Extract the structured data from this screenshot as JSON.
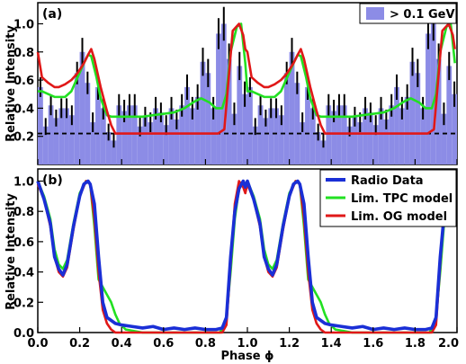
{
  "colors": {
    "histogram": "#8c8ce6",
    "histogram_edge": "#7070d0",
    "radio": "#1a2fd6",
    "tpc": "#22e022",
    "og": "#e01818",
    "error_bar": "#000000",
    "baseline": "#000000"
  },
  "chart_data": [
    {
      "panel": "(a)",
      "type": "bar",
      "xlabel": "",
      "ylabel": "Relative Intensity",
      "xlim": [
        0.0,
        2.0
      ],
      "ylim": [
        0.0,
        1.15
      ],
      "yticks": [
        0.2,
        0.4,
        0.6,
        0.8,
        1.0
      ],
      "ytick_labels": [
        "0.2",
        "0.4",
        "0.6",
        "0.8",
        "1.0"
      ],
      "grid": false,
      "legend_position": "top-right",
      "legend": [
        {
          "label": "> 0.1 GeV",
          "kind": "histogram"
        }
      ],
      "baseline": {
        "y": 0.22,
        "style": "dashed"
      },
      "histogram": {
        "bin_width": 0.025,
        "values_one_cycle": [
          0.55,
          0.27,
          0.42,
          0.33,
          0.4,
          0.4,
          0.35,
          0.65,
          0.8,
          0.58,
          0.3,
          0.55,
          0.4,
          0.23,
          0.17,
          0.42,
          0.38,
          0.42,
          0.42,
          0.27,
          0.34,
          0.3,
          0.4,
          0.37,
          0.28,
          0.4,
          0.32,
          0.42,
          0.55,
          0.4,
          0.48,
          0.73,
          0.65,
          0.4,
          0.93,
          1.0,
          0.75,
          0.36,
          0.7,
          0.5
        ],
        "errors_one_cycle": [
          0.07,
          0.06,
          0.07,
          0.06,
          0.07,
          0.07,
          0.07,
          0.08,
          0.1,
          0.08,
          0.07,
          0.09,
          0.08,
          0.06,
          0.05,
          0.08,
          0.08,
          0.08,
          0.08,
          0.07,
          0.07,
          0.07,
          0.08,
          0.07,
          0.07,
          0.08,
          0.07,
          0.08,
          0.09,
          0.08,
          0.09,
          0.1,
          0.1,
          0.08,
          0.11,
          0.12,
          0.11,
          0.08,
          0.1,
          0.09
        ],
        "cycles": 2
      },
      "series": [
        {
          "name": "Lim. TPC model",
          "kind": "line",
          "color_key": "tpc",
          "x": [
            0.0,
            0.02,
            0.05,
            0.08,
            0.1,
            0.13,
            0.16,
            0.19,
            0.22,
            0.24,
            0.255,
            0.28,
            0.3,
            0.33,
            0.35,
            0.38,
            0.4,
            0.45,
            0.5,
            0.55,
            0.6,
            0.65,
            0.7,
            0.75,
            0.78,
            0.82,
            0.85,
            0.88,
            0.9,
            0.92,
            0.95,
            0.97,
            0.99
          ],
          "y": [
            0.52,
            0.52,
            0.5,
            0.48,
            0.48,
            0.48,
            0.52,
            0.62,
            0.72,
            0.78,
            0.77,
            0.62,
            0.47,
            0.35,
            0.34,
            0.34,
            0.34,
            0.34,
            0.34,
            0.35,
            0.36,
            0.37,
            0.4,
            0.45,
            0.47,
            0.44,
            0.4,
            0.4,
            0.5,
            0.8,
            0.98,
            1.0,
            0.72
          ]
        },
        {
          "name": "Lim. OG model",
          "kind": "line",
          "color_key": "og",
          "x": [
            0.0,
            0.02,
            0.05,
            0.08,
            0.1,
            0.13,
            0.16,
            0.19,
            0.22,
            0.24,
            0.255,
            0.27,
            0.3,
            0.33,
            0.35,
            0.37,
            0.4,
            0.5,
            0.6,
            0.7,
            0.8,
            0.86,
            0.89,
            0.91,
            0.93,
            0.96,
            0.98,
            0.99
          ],
          "y": [
            0.8,
            0.62,
            0.58,
            0.55,
            0.55,
            0.57,
            0.6,
            0.65,
            0.72,
            0.78,
            0.82,
            0.75,
            0.55,
            0.38,
            0.28,
            0.22,
            0.22,
            0.22,
            0.22,
            0.22,
            0.22,
            0.22,
            0.25,
            0.6,
            0.95,
            1.0,
            0.92,
            0.82
          ]
        }
      ]
    },
    {
      "panel": "(b)",
      "type": "line",
      "xlabel": "Phase ϕ",
      "ylabel": "Relative Intensity",
      "xlim": [
        0.0,
        2.0
      ],
      "ylim": [
        0.0,
        1.08
      ],
      "xticks": [
        0.0,
        0.2,
        0.4,
        0.6,
        0.8,
        1.0,
        1.2,
        1.4,
        1.6,
        1.8,
        2.0
      ],
      "xtick_labels": [
        "0.0",
        "0.2",
        "0.4",
        "0.6",
        "0.8",
        "1.0",
        "1.2",
        "1.4",
        "1.6",
        "1.8",
        "2.0"
      ],
      "yticks": [
        0.0,
        0.2,
        0.4,
        0.6,
        0.8,
        1.0
      ],
      "ytick_labels": [
        "0.0",
        "0.2",
        "0.4",
        "0.6",
        "0.8",
        "1.0"
      ],
      "grid": false,
      "legend_position": "top-right",
      "series": [
        {
          "name": "Radio Data",
          "color_key": "radio",
          "x": [
            0.0,
            0.03,
            0.06,
            0.08,
            0.1,
            0.12,
            0.14,
            0.17,
            0.2,
            0.22,
            0.24,
            0.25,
            0.27,
            0.29,
            0.31,
            0.33,
            0.35,
            0.37,
            0.4,
            0.45,
            0.5,
            0.55,
            0.6,
            0.65,
            0.7,
            0.75,
            0.8,
            0.85,
            0.88,
            0.9,
            0.92,
            0.94,
            0.96,
            0.98,
            0.99
          ],
          "y": [
            1.0,
            0.88,
            0.72,
            0.5,
            0.42,
            0.38,
            0.45,
            0.7,
            0.9,
            0.98,
            1.0,
            0.98,
            0.85,
            0.5,
            0.2,
            0.1,
            0.08,
            0.06,
            0.05,
            0.04,
            0.03,
            0.04,
            0.02,
            0.03,
            0.02,
            0.03,
            0.02,
            0.02,
            0.03,
            0.1,
            0.5,
            0.8,
            0.95,
            1.0,
            0.96
          ]
        },
        {
          "name": "Lim. TPC model",
          "color_key": "tpc",
          "x": [
            0.0,
            0.03,
            0.06,
            0.08,
            0.1,
            0.12,
            0.14,
            0.17,
            0.2,
            0.23,
            0.25,
            0.27,
            0.29,
            0.31,
            0.33,
            0.35,
            0.37,
            0.39,
            0.42,
            0.5,
            0.6,
            0.7,
            0.8,
            0.87,
            0.9,
            0.92,
            0.94,
            0.96,
            0.98,
            0.99
          ],
          "y": [
            1.0,
            0.9,
            0.75,
            0.55,
            0.45,
            0.42,
            0.48,
            0.72,
            0.92,
            1.0,
            0.98,
            0.7,
            0.35,
            0.3,
            0.25,
            0.2,
            0.12,
            0.06,
            0.02,
            0.0,
            0.0,
            0.0,
            0.0,
            0.0,
            0.1,
            0.4,
            0.75,
            0.95,
            1.0,
            0.95
          ]
        },
        {
          "name": "Lim. OG model",
          "color_key": "og",
          "x": [
            0.0,
            0.03,
            0.06,
            0.08,
            0.1,
            0.12,
            0.14,
            0.17,
            0.2,
            0.23,
            0.25,
            0.27,
            0.29,
            0.31,
            0.33,
            0.35,
            0.37,
            0.4,
            0.5,
            0.6,
            0.7,
            0.8,
            0.88,
            0.9,
            0.92,
            0.94,
            0.96,
            0.98,
            0.99
          ],
          "y": [
            0.98,
            0.88,
            0.7,
            0.5,
            0.4,
            0.37,
            0.43,
            0.68,
            0.9,
            1.0,
            0.98,
            0.75,
            0.4,
            0.15,
            0.06,
            0.02,
            0.0,
            0.0,
            0.0,
            0.0,
            0.0,
            0.0,
            0.0,
            0.05,
            0.45,
            0.85,
            1.0,
            0.96,
            0.92
          ]
        }
      ],
      "cycles": 2
    }
  ]
}
